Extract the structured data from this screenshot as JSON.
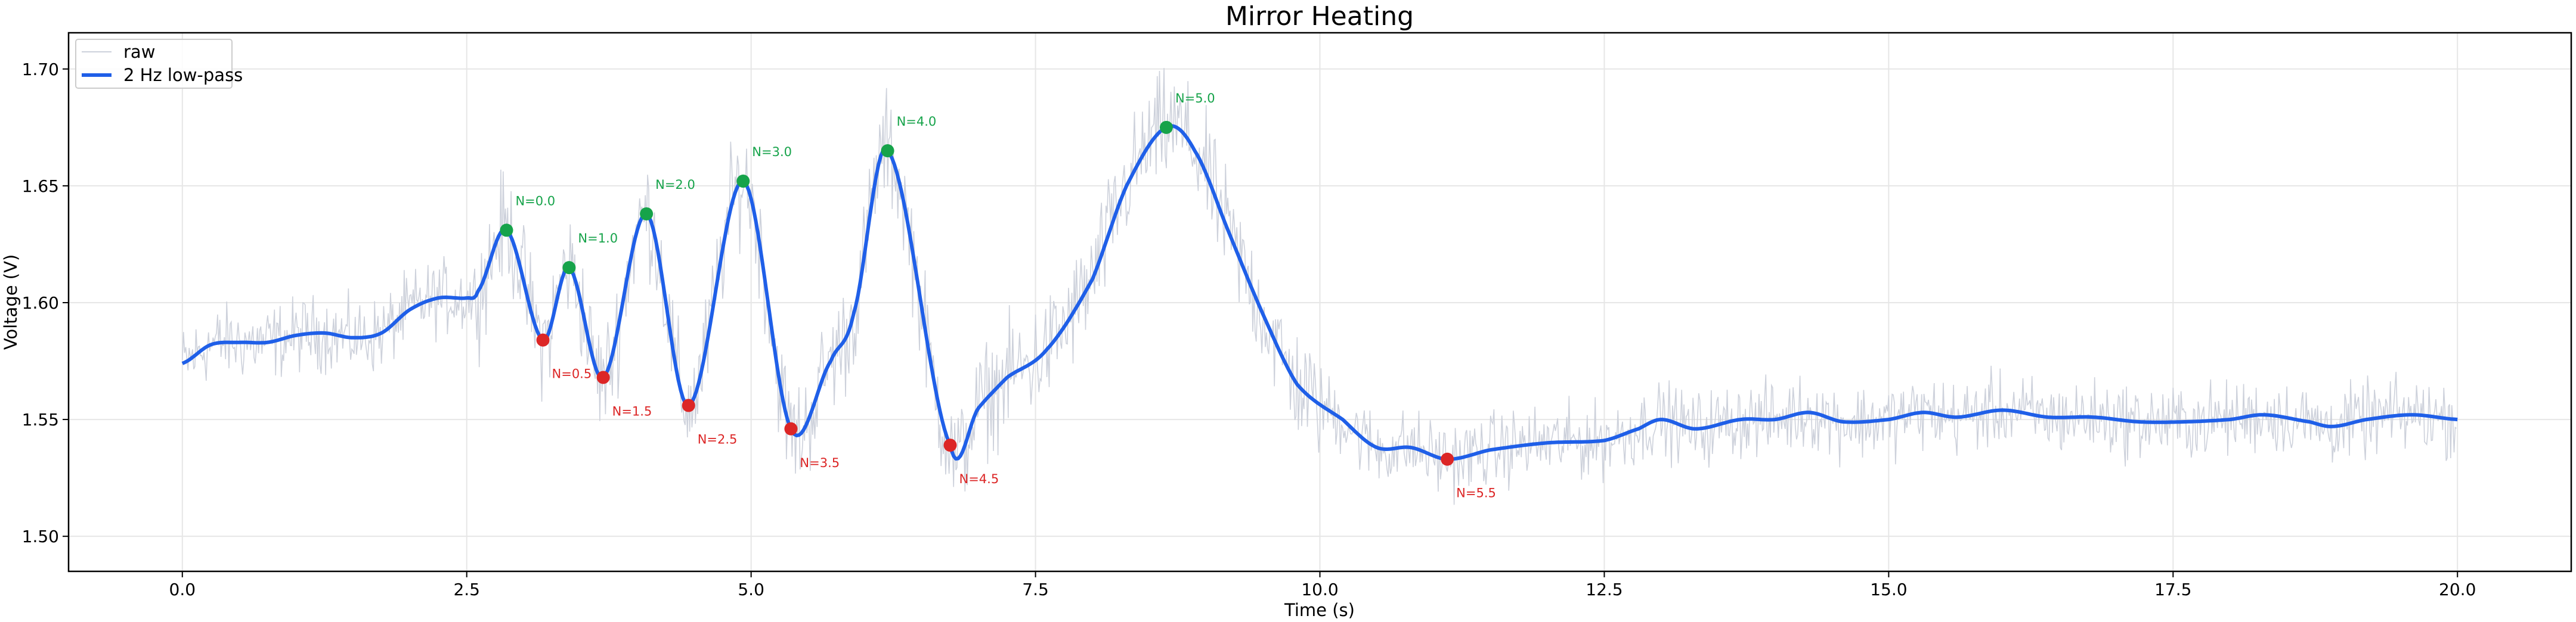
{
  "chart_data": {
    "type": "line",
    "title": "Mirror Heating",
    "xlabel": "Time (s)",
    "ylabel": "Voltage (V)",
    "xlim": [
      -1.0,
      21.0
    ],
    "ylim": [
      1.485,
      1.7155
    ],
    "xticks": [
      0.0,
      2.5,
      5.0,
      7.5,
      10.0,
      12.5,
      15.0,
      17.5,
      20.0
    ],
    "xtick_labels": [
      "0.0",
      "2.5",
      "5.0",
      "7.5",
      "10.0",
      "12.5",
      "15.0",
      "17.5",
      "20.0"
    ],
    "yticks": [
      1.5,
      1.55,
      1.6,
      1.65,
      1.7
    ],
    "ytick_labels": [
      "1.50",
      "1.55",
      "1.60",
      "1.65",
      "1.70"
    ],
    "grid": true,
    "legend": {
      "placement": "top-left",
      "entries": [
        "raw",
        "2 Hz low-pass"
      ]
    },
    "colors": {
      "raw": "#cdd1db",
      "lowpass": "#1f5fe8",
      "peak": "#16a34a",
      "trough": "#dc2626"
    },
    "raw_noise_amplitude": 0.012,
    "series": [
      {
        "name": "2 Hz low-pass",
        "x": [
          0,
          0.25,
          0.5,
          0.75,
          1.0,
          1.25,
          1.5,
          1.75,
          2.0,
          2.25,
          2.5,
          2.6,
          2.85,
          3.17,
          3.4,
          3.7,
          4.08,
          4.45,
          4.93,
          5.35,
          5.7,
          5.9,
          6.2,
          6.75,
          7.0,
          7.25,
          7.6,
          8.0,
          8.3,
          8.65,
          8.9,
          9.2,
          9.5,
          9.8,
          10.2,
          10.5,
          10.8,
          11.12,
          11.5,
          12.0,
          12.5,
          12.8,
          13.0,
          13.3,
          13.7,
          14.0,
          14.3,
          14.6,
          15.0,
          15.3,
          15.6,
          16.0,
          16.4,
          16.8,
          17.2,
          17.6,
          18.0,
          18.3,
          18.7,
          18.9,
          19.2,
          19.6,
          20.0
        ],
        "y": [
          1.574,
          1.582,
          1.583,
          1.583,
          1.586,
          1.587,
          1.585,
          1.587,
          1.597,
          1.602,
          1.602,
          1.605,
          1.631,
          1.584,
          1.615,
          1.568,
          1.638,
          1.556,
          1.652,
          1.546,
          1.575,
          1.595,
          1.665,
          1.539,
          1.555,
          1.568,
          1.58,
          1.61,
          1.65,
          1.675,
          1.665,
          1.63,
          1.595,
          1.565,
          1.55,
          1.538,
          1.538,
          1.533,
          1.537,
          1.54,
          1.541,
          1.546,
          1.55,
          1.546,
          1.55,
          1.55,
          1.553,
          1.549,
          1.55,
          1.553,
          1.551,
          1.554,
          1.551,
          1.551,
          1.549,
          1.549,
          1.55,
          1.552,
          1.549,
          1.547,
          1.55,
          1.552,
          1.55
        ]
      }
    ],
    "annotations": [
      {
        "label": "N=0.0",
        "x": 2.85,
        "y": 1.631,
        "kind": "peak"
      },
      {
        "label": "N=0.5",
        "x": 3.17,
        "y": 1.584,
        "kind": "trough"
      },
      {
        "label": "N=1.0",
        "x": 3.4,
        "y": 1.615,
        "kind": "peak"
      },
      {
        "label": "N=1.5",
        "x": 3.7,
        "y": 1.568,
        "kind": "trough"
      },
      {
        "label": "N=2.0",
        "x": 4.08,
        "y": 1.638,
        "kind": "peak"
      },
      {
        "label": "N=2.5",
        "x": 4.45,
        "y": 1.556,
        "kind": "trough"
      },
      {
        "label": "N=3.0",
        "x": 4.93,
        "y": 1.652,
        "kind": "peak"
      },
      {
        "label": "N=3.5",
        "x": 5.35,
        "y": 1.546,
        "kind": "trough"
      },
      {
        "label": "N=4.0",
        "x": 6.2,
        "y": 1.665,
        "kind": "peak"
      },
      {
        "label": "N=4.5",
        "x": 6.75,
        "y": 1.539,
        "kind": "trough"
      },
      {
        "label": "N=5.0",
        "x": 8.65,
        "y": 1.675,
        "kind": "peak"
      },
      {
        "label": "N=5.5",
        "x": 11.12,
        "y": 1.533,
        "kind": "trough"
      }
    ]
  }
}
